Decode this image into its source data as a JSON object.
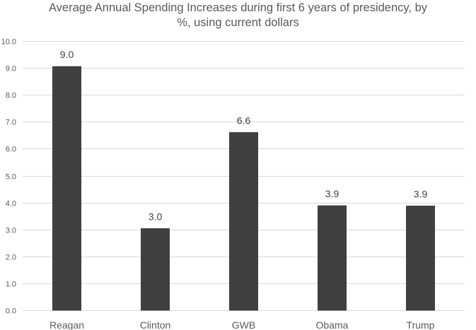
{
  "chart_data": {
    "type": "bar",
    "title_lines": [
      "Average Annual Spending Increases during first 6 years of presidency, by",
      "%, using current dollars"
    ],
    "categories": [
      "Reagan",
      "Clinton",
      "GWB",
      "Obama",
      "Trump"
    ],
    "values": [
      9.05,
      3.03,
      6.6,
      3.88,
      3.87
    ],
    "data_labels": [
      "9.0",
      "3.0",
      "6.6",
      "3.9",
      "3.9"
    ],
    "y_ticks": [
      "0.0",
      "1.0",
      "2.0",
      "3.0",
      "4.0",
      "5.0",
      "6.0",
      "7.0",
      "8.0",
      "9.0",
      "10.0"
    ],
    "ylim": [
      0,
      10
    ],
    "xlabel": "",
    "ylabel": "",
    "grid": true,
    "bar_color": "#404040",
    "grid_color": "#d9d9d9",
    "text_color": "#595959",
    "label_color": "#404040"
  }
}
